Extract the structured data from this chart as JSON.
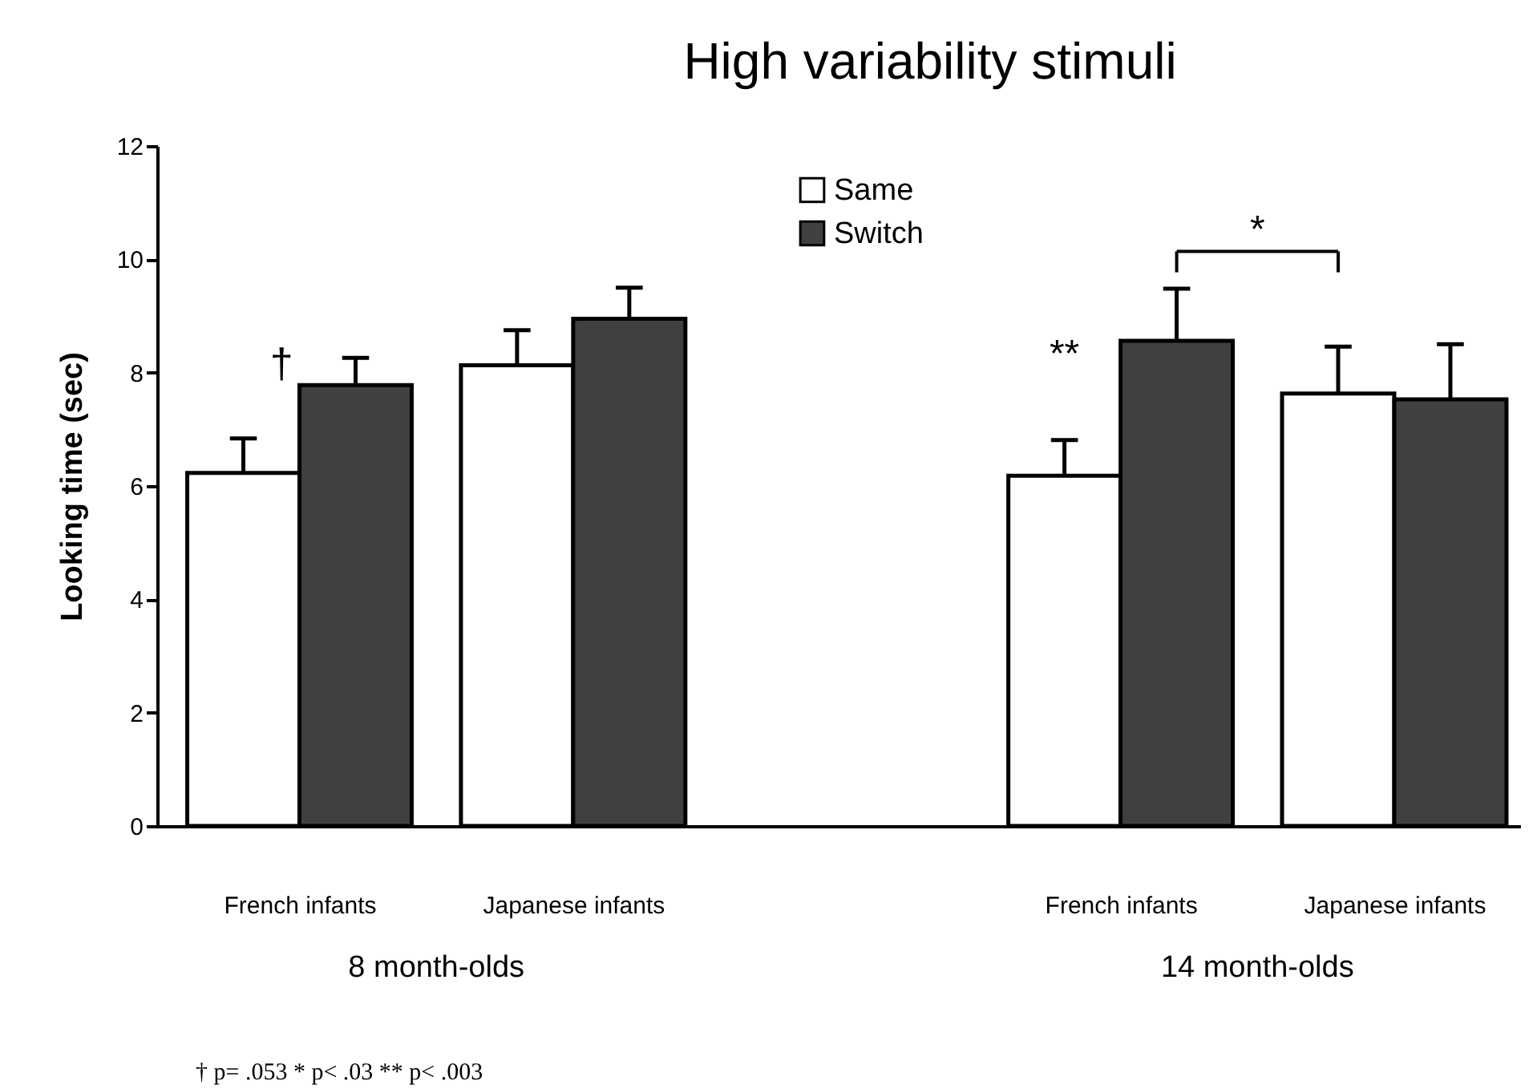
{
  "chart_data": {
    "type": "bar",
    "title": "High variability stimuli",
    "ylabel": "Looking time (sec)",
    "categories": [
      "French infants",
      "Japanese infants",
      null,
      "French infants",
      "Japanese infants"
    ],
    "series": [
      {
        "name": "Same",
        "color": "#ffffff",
        "values": [
          6.23,
          8.13,
          null,
          6.18,
          7.63
        ],
        "errors": [
          [
            6.23,
            6.84
          ],
          [
            8.13,
            8.75
          ],
          null,
          [
            6.18,
            6.81
          ],
          [
            7.63,
            8.46
          ]
        ]
      },
      {
        "name": "Switch",
        "color": "#404040",
        "values": [
          7.78,
          8.95,
          null,
          8.56,
          7.53
        ],
        "errors": [
          [
            7.78,
            8.26
          ],
          [
            8.95,
            9.5
          ],
          null,
          [
            8.56,
            9.48
          ],
          [
            7.53,
            8.5
          ]
        ]
      }
    ],
    "ylim": [
      0,
      12
    ],
    "yticks": [
      0,
      2,
      4,
      6,
      8,
      10,
      12
    ],
    "grid": false,
    "legend": "top",
    "annotations": [
      "†",
      "**",
      "*",
      "8 month-olds",
      "14 month-olds",
      "† p= .053     * p< .03     ** p< .003"
    ]
  }
}
